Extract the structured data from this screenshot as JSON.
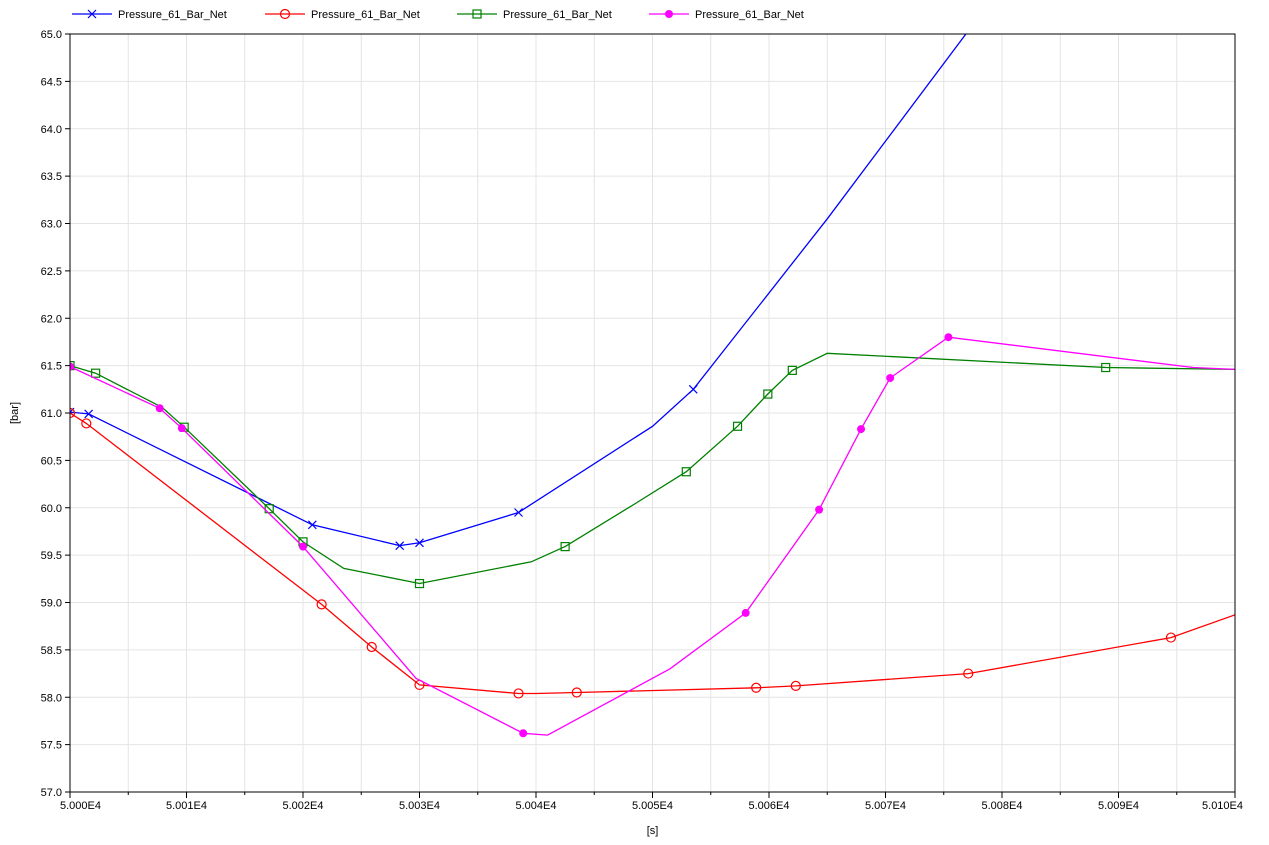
{
  "chart_data": {
    "type": "line",
    "title": "",
    "xlabel": "[s]",
    "ylabel": "[bar]",
    "xlim": [
      50000,
      50100
    ],
    "ylim": [
      57.0,
      65.0
    ],
    "x_ticks": [
      "5.000E4",
      "5.001E4",
      "5.002E4",
      "5.003E4",
      "5.004E4",
      "5.005E4",
      "5.006E4",
      "5.007E4",
      "5.008E4",
      "5.009E4",
      "5.010E4"
    ],
    "y_ticks": [
      "57.0",
      "57.5",
      "58.0",
      "58.5",
      "59.0",
      "59.5",
      "60.0",
      "60.5",
      "61.0",
      "61.5",
      "62.0",
      "62.5",
      "63.0",
      "63.5",
      "64.0",
      "64.5",
      "65.0"
    ],
    "grid": true,
    "legend_position": "top-left",
    "series": [
      {
        "name": "Pressure_61_Bar_Net",
        "color": "#0000ff",
        "marker": "x",
        "points": [
          [
            50000.0,
            61.01
          ],
          [
            50001.6,
            60.99
          ],
          [
            50020.8,
            59.82
          ],
          [
            50028.3,
            59.6
          ],
          [
            50030.0,
            59.63
          ],
          [
            50038.5,
            59.95
          ],
          [
            50050.0,
            60.86
          ],
          [
            50053.5,
            61.25
          ],
          [
            50065.0,
            63.05
          ],
          [
            50076.9,
            65.0
          ]
        ],
        "marker_points": [
          [
            50000.0,
            61.01
          ],
          [
            50001.6,
            60.99
          ],
          [
            50020.8,
            59.82
          ],
          [
            50028.3,
            59.6
          ],
          [
            50030.0,
            59.63
          ],
          [
            50038.5,
            59.95
          ],
          [
            50053.5,
            61.25
          ]
        ]
      },
      {
        "name": "Pressure_61_Bar_Net",
        "color": "#ff0000",
        "marker": "circle",
        "points": [
          [
            50000.0,
            61.0
          ],
          [
            50001.4,
            60.89
          ],
          [
            50021.6,
            58.98
          ],
          [
            50025.9,
            58.53
          ],
          [
            50030.0,
            58.13
          ],
          [
            50038.5,
            58.04
          ],
          [
            50040.0,
            58.04
          ],
          [
            50043.5,
            58.05
          ],
          [
            50058.9,
            58.1
          ],
          [
            50062.3,
            58.12
          ],
          [
            50077.1,
            58.25
          ],
          [
            50094.5,
            58.63
          ],
          [
            50100.0,
            58.87
          ]
        ],
        "marker_points": [
          [
            50000.0,
            61.0
          ],
          [
            50001.4,
            60.89
          ],
          [
            50021.6,
            58.98
          ],
          [
            50025.9,
            58.53
          ],
          [
            50030.0,
            58.13
          ],
          [
            50038.5,
            58.04
          ],
          [
            50043.5,
            58.05
          ],
          [
            50058.9,
            58.1
          ],
          [
            50062.3,
            58.12
          ],
          [
            50077.1,
            58.25
          ],
          [
            50094.5,
            58.63
          ]
        ]
      },
      {
        "name": "Pressure_61_Bar_Net",
        "color": "#008000",
        "marker": "square",
        "points": [
          [
            50000.0,
            61.5
          ],
          [
            50002.2,
            61.42
          ],
          [
            50007.9,
            61.06
          ],
          [
            50009.8,
            60.85
          ],
          [
            50017.1,
            59.99
          ],
          [
            50020.0,
            59.64
          ],
          [
            50023.5,
            59.36
          ],
          [
            50030.0,
            59.2
          ],
          [
            50039.6,
            59.43
          ],
          [
            50042.5,
            59.59
          ],
          [
            50048.6,
            60.05
          ],
          [
            50052.9,
            60.38
          ],
          [
            50057.3,
            60.86
          ],
          [
            50059.9,
            61.2
          ],
          [
            50062.0,
            61.45
          ],
          [
            50065.0,
            61.63
          ],
          [
            50088.9,
            61.48
          ],
          [
            50100.0,
            61.46
          ]
        ],
        "marker_points": [
          [
            50000.0,
            61.5
          ],
          [
            50002.2,
            61.42
          ],
          [
            50009.8,
            60.85
          ],
          [
            50017.1,
            59.99
          ],
          [
            50020.0,
            59.64
          ],
          [
            50030.0,
            59.2
          ],
          [
            50042.5,
            59.59
          ],
          [
            50052.9,
            60.38
          ],
          [
            50057.3,
            60.86
          ],
          [
            50059.9,
            61.2
          ],
          [
            50062.0,
            61.45
          ],
          [
            50088.9,
            61.48
          ]
        ]
      },
      {
        "name": "Pressure_61_Bar_Net",
        "color": "#ff00ff",
        "marker": "dot",
        "points": [
          [
            50000.0,
            61.49
          ],
          [
            50007.7,
            61.05
          ],
          [
            50009.6,
            60.84
          ],
          [
            50020.0,
            59.59
          ],
          [
            50029.7,
            58.2
          ],
          [
            50038.9,
            57.62
          ],
          [
            50041.0,
            57.6
          ],
          [
            50051.5,
            58.3
          ],
          [
            50058.0,
            58.89
          ],
          [
            50064.3,
            59.98
          ],
          [
            50067.9,
            60.83
          ],
          [
            50070.4,
            61.37
          ],
          [
            50075.4,
            61.8
          ],
          [
            50096.4,
            61.48
          ],
          [
            50100.0,
            61.46
          ]
        ],
        "marker_points": [
          [
            50000.0,
            61.49
          ],
          [
            50007.7,
            61.05
          ],
          [
            50009.6,
            60.84
          ],
          [
            50020.0,
            59.59
          ],
          [
            50038.9,
            57.62
          ],
          [
            50058.0,
            58.89
          ],
          [
            50064.3,
            59.98
          ],
          [
            50067.9,
            60.83
          ],
          [
            50070.4,
            61.37
          ],
          [
            50075.4,
            61.8
          ]
        ]
      }
    ]
  }
}
